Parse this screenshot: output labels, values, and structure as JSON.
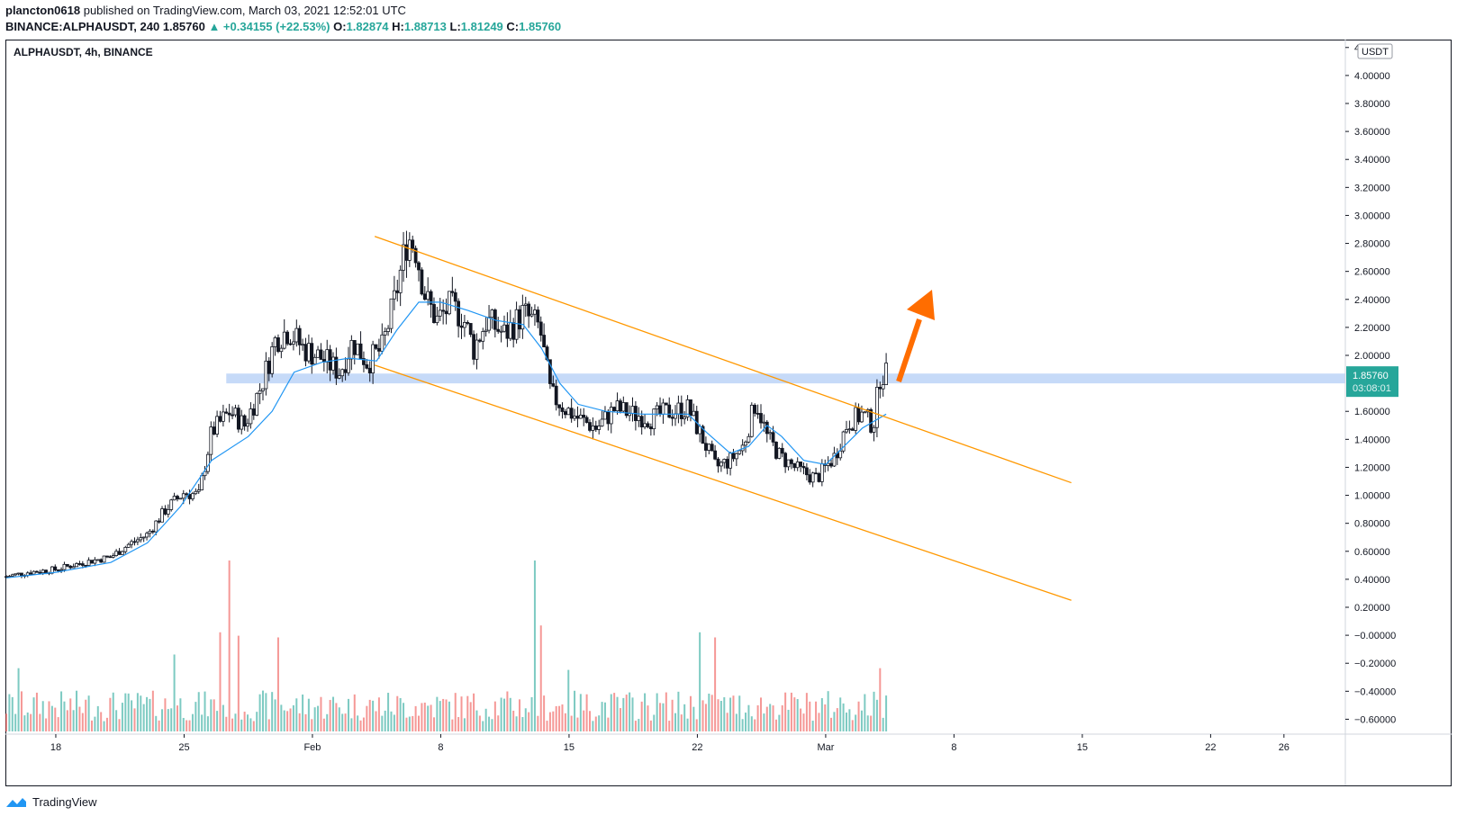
{
  "header": {
    "author": "plancton0618",
    "published_text": "published on TradingView.com, March 03, 2021 12:52:01 UTC",
    "symbol_line": "BINANCE:ALPHAUSDT, 240",
    "last": "1.85760",
    "change": "▲ +0.34155 (+22.53%)",
    "o_label": "O:",
    "o_value": "1.82874",
    "h_label": "H:",
    "h_value": "1.88713",
    "l_label": "L:",
    "l_value": "1.81249",
    "c_label": "C:",
    "c_value": "1.85760"
  },
  "footer": {
    "brand": "TradingView"
  },
  "chart_data": {
    "type": "candlestick",
    "title": "ALPHAUSDT, 4h, BINANCE",
    "currency_badge": "USDT",
    "last_price_label": "1.85760",
    "countdown_label": "03:08:01",
    "y_ticks": [
      "4.20000",
      "4.00000",
      "3.80000",
      "3.60000",
      "3.40000",
      "3.20000",
      "3.00000",
      "2.80000",
      "2.60000",
      "2.40000",
      "2.20000",
      "2.00000",
      "1.60000",
      "1.40000",
      "1.20000",
      "1.00000",
      "0.80000",
      "0.60000",
      "0.40000",
      "0.20000",
      "−0.00000",
      "−0.20000",
      "−0.40000",
      "−0.60000"
    ],
    "y_range": [
      -0.7,
      4.25
    ],
    "x_ticks": [
      {
        "label": "18",
        "day": 18
      },
      {
        "label": "25",
        "day": 25
      },
      {
        "label": "Feb",
        "day": 32
      },
      {
        "label": "8",
        "day": 39
      },
      {
        "label": "15",
        "day": 46
      },
      {
        "label": "22",
        "day": 53
      },
      {
        "label": "Mar",
        "day": 60
      },
      {
        "label": "8",
        "day": 67
      },
      {
        "label": "15",
        "day": 74
      },
      {
        "label": "22",
        "day": 81
      },
      {
        "label": "26",
        "day": 85
      }
    ],
    "x_range_days": [
      15.3,
      88.3
    ],
    "price_anchors": [
      [
        15.3,
        0.42
      ],
      [
        16.5,
        0.45
      ],
      [
        18,
        0.47
      ],
      [
        19.5,
        0.52
      ],
      [
        21,
        0.56
      ],
      [
        22,
        0.65
      ],
      [
        23,
        0.72
      ],
      [
        24,
        0.9
      ],
      [
        25,
        1.02
      ],
      [
        25.8,
        1.0
      ],
      [
        26.5,
        1.45
      ],
      [
        27.5,
        1.6
      ],
      [
        28.3,
        1.5
      ],
      [
        29.2,
        1.78
      ],
      [
        30,
        2.12
      ],
      [
        30.7,
        2.18
      ],
      [
        31.5,
        2.05
      ],
      [
        32.5,
        1.98
      ],
      [
        33.5,
        1.88
      ],
      [
        34.2,
        2.1
      ],
      [
        35,
        1.95
      ],
      [
        35.8,
        2.05
      ],
      [
        36.5,
        2.4
      ],
      [
        37.2,
        2.85
      ],
      [
        37.6,
        2.78
      ],
      [
        38.2,
        2.4
      ],
      [
        38.8,
        2.25
      ],
      [
        39.5,
        2.35
      ],
      [
        40.2,
        2.28
      ],
      [
        40.8,
        2.05
      ],
      [
        41.5,
        2.25
      ],
      [
        42.5,
        2.15
      ],
      [
        43.5,
        2.3
      ],
      [
        44.4,
        2.2
      ],
      [
        45,
        1.72
      ],
      [
        45.8,
        1.62
      ],
      [
        46.5,
        1.55
      ],
      [
        47.5,
        1.48
      ],
      [
        48.5,
        1.62
      ],
      [
        49.5,
        1.58
      ],
      [
        50.5,
        1.55
      ],
      [
        51.5,
        1.6
      ],
      [
        52.5,
        1.62
      ],
      [
        53.3,
        1.4
      ],
      [
        54,
        1.2
      ],
      [
        54.8,
        1.25
      ],
      [
        55.5,
        1.35
      ],
      [
        56.2,
        1.68
      ],
      [
        56.8,
        1.42
      ],
      [
        57.5,
        1.28
      ],
      [
        58.5,
        1.18
      ],
      [
        59.5,
        1.12
      ],
      [
        60.5,
        1.28
      ],
      [
        61.2,
        1.52
      ],
      [
        62,
        1.58
      ],
      [
        62.6,
        1.5
      ],
      [
        63,
        1.88
      ],
      [
        63.3,
        1.858
      ]
    ],
    "sma_anchors": [
      [
        15.3,
        0.41
      ],
      [
        18,
        0.45
      ],
      [
        21,
        0.52
      ],
      [
        23,
        0.66
      ],
      [
        24.8,
        0.92
      ],
      [
        26.5,
        1.25
      ],
      [
        28.5,
        1.42
      ],
      [
        29.8,
        1.6
      ],
      [
        31,
        1.88
      ],
      [
        32.5,
        1.95
      ],
      [
        34,
        1.98
      ],
      [
        35.5,
        1.96
      ],
      [
        36.6,
        2.18
      ],
      [
        37.8,
        2.38
      ],
      [
        39,
        2.38
      ],
      [
        40.5,
        2.32
      ],
      [
        42,
        2.25
      ],
      [
        43.5,
        2.22
      ],
      [
        44.5,
        2.05
      ],
      [
        45.5,
        1.8
      ],
      [
        46.5,
        1.65
      ],
      [
        48,
        1.6
      ],
      [
        50,
        1.58
      ],
      [
        52.5,
        1.58
      ],
      [
        53.5,
        1.45
      ],
      [
        54.8,
        1.3
      ],
      [
        55.8,
        1.35
      ],
      [
        56.8,
        1.5
      ],
      [
        57.6,
        1.42
      ],
      [
        58.8,
        1.25
      ],
      [
        60,
        1.22
      ],
      [
        61,
        1.35
      ],
      [
        62,
        1.48
      ],
      [
        63.3,
        1.58
      ]
    ],
    "volume_spikes": [
      {
        "day": 27.5,
        "volume": 1.0,
        "dir": "up"
      },
      {
        "day": 26.9,
        "volume": 0.58,
        "dir": "up"
      },
      {
        "day": 28.0,
        "volume": 0.56,
        "dir": "down"
      },
      {
        "day": 30.1,
        "volume": 0.55,
        "dir": "up"
      },
      {
        "day": 44.2,
        "volume": 1.0,
        "dir": "down"
      },
      {
        "day": 44.5,
        "volume": 0.62,
        "dir": "up"
      },
      {
        "day": 53.2,
        "volume": 0.58,
        "dir": "down"
      },
      {
        "day": 54.0,
        "volume": 0.55,
        "dir": "up"
      },
      {
        "day": 16.0,
        "volume": 0.37,
        "dir": "down"
      },
      {
        "day": 63.0,
        "volume": 0.37,
        "dir": "up"
      },
      {
        "day": 24.4,
        "volume": 0.45,
        "dir": "down"
      },
      {
        "day": 46.0,
        "volume": 0.36,
        "dir": "down"
      }
    ],
    "resistance_zone": {
      "from_price": 1.8,
      "to_price": 1.87,
      "from_day": 27.3
    },
    "channel_upper": {
      "start": [
        35.4,
        2.85
      ],
      "end": [
        73.4,
        1.09
      ]
    },
    "channel_lower": {
      "start": [
        35.4,
        1.93
      ],
      "end": [
        73.4,
        0.25
      ]
    },
    "colors": {
      "up": "#26a69a",
      "down": "#ef5350",
      "candle_up": "#ffffff",
      "candle_down": "#131722",
      "sma": "#2196f3",
      "channel": "#ff9800",
      "zone": "#b3cdf5",
      "arrow": "#ff6d00",
      "last_price_bg": "#26a69a"
    },
    "grid": false
  }
}
